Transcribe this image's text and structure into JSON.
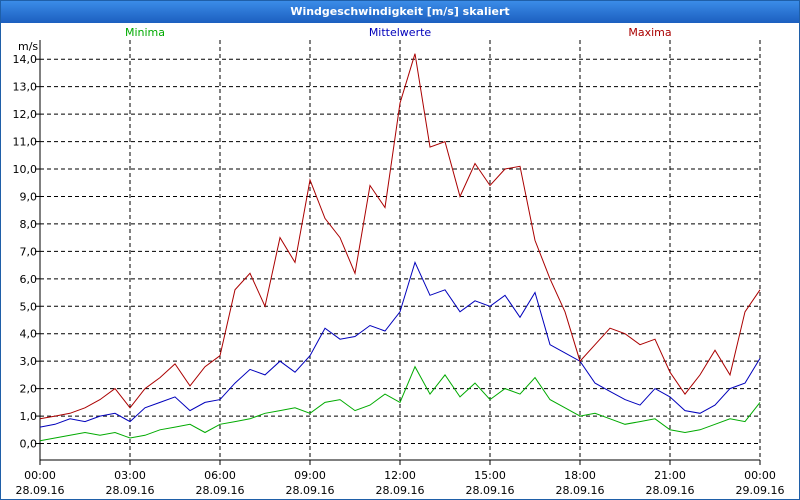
{
  "window": {
    "title": "Windgeschwindigkeit [m/s] skaliert"
  },
  "chart_data": {
    "type": "line",
    "title": "Windgeschwindigkeit [m/s] skaliert",
    "ylabel": "m/s",
    "xlabel": "",
    "ylim": [
      -0.6,
      14.7
    ],
    "yticks": [
      0,
      1,
      2,
      3,
      4,
      5,
      6,
      7,
      8,
      9,
      10,
      11,
      12,
      13,
      14
    ],
    "ytick_labels": [
      "0,0",
      "1,0",
      "2,0",
      "3,0",
      "4,0",
      "5,0",
      "6,0",
      "7,0",
      "8,0",
      "9,0",
      "10,0",
      "11,0",
      "12,0",
      "13,0",
      "14,0"
    ],
    "xlim_hours": [
      0,
      24
    ],
    "xticks": [
      {
        "hours": 0,
        "time": "00:00",
        "date": "28.09.16"
      },
      {
        "hours": 3,
        "time": "03:00",
        "date": "28.09.16"
      },
      {
        "hours": 6,
        "time": "06:00",
        "date": "28.09.16"
      },
      {
        "hours": 9,
        "time": "09:00",
        "date": "28.09.16"
      },
      {
        "hours": 12,
        "time": "12:00",
        "date": "28.09.16"
      },
      {
        "hours": 15,
        "time": "15:00",
        "date": "28.09.16"
      },
      {
        "hours": 18,
        "time": "18:00",
        "date": "28.09.16"
      },
      {
        "hours": 21,
        "time": "21:00",
        "date": "28.09.16"
      },
      {
        "hours": 24,
        "time": "00:00",
        "date": "29.09.16"
      }
    ],
    "grid": true,
    "legend_position": "top",
    "series": [
      {
        "name": "Minima",
        "color": "#00aa00",
        "x": [
          0,
          0.5,
          1,
          1.5,
          2,
          2.5,
          3,
          3.5,
          4,
          4.5,
          5,
          5.5,
          6,
          6.5,
          7,
          7.5,
          8,
          8.5,
          9,
          9.5,
          10,
          10.5,
          11,
          11.5,
          12,
          12.5,
          13,
          13.5,
          14,
          14.5,
          15,
          15.5,
          16,
          16.5,
          17,
          17.5,
          18,
          18.5,
          19,
          19.5,
          20,
          20.5,
          21,
          21.5,
          22,
          22.5,
          23,
          23.5,
          24
        ],
        "values": [
          0.1,
          0.2,
          0.3,
          0.4,
          0.3,
          0.4,
          0.2,
          0.3,
          0.5,
          0.6,
          0.7,
          0.4,
          0.7,
          0.8,
          0.9,
          1.1,
          1.2,
          1.3,
          1.1,
          1.5,
          1.6,
          1.2,
          1.4,
          1.8,
          1.5,
          2.8,
          1.8,
          2.5,
          1.7,
          2.2,
          1.6,
          2.0,
          1.8,
          2.4,
          1.6,
          1.3,
          1.0,
          1.1,
          0.9,
          0.7,
          0.8,
          0.9,
          0.5,
          0.4,
          0.5,
          0.7,
          0.9,
          0.8,
          1.5
        ]
      },
      {
        "name": "Mittelwerte",
        "color": "#0000bb",
        "x": [
          0,
          0.5,
          1,
          1.5,
          2,
          2.5,
          3,
          3.5,
          4,
          4.5,
          5,
          5.5,
          6,
          6.5,
          7,
          7.5,
          8,
          8.5,
          9,
          9.5,
          10,
          10.5,
          11,
          11.5,
          12,
          12.5,
          13,
          13.5,
          14,
          14.5,
          15,
          15.5,
          16,
          16.5,
          17,
          17.5,
          18,
          18.5,
          19,
          19.5,
          20,
          20.5,
          21,
          21.5,
          22,
          22.5,
          23,
          23.5,
          24
        ],
        "values": [
          0.6,
          0.7,
          0.9,
          0.8,
          1.0,
          1.1,
          0.8,
          1.3,
          1.5,
          1.7,
          1.2,
          1.5,
          1.6,
          2.2,
          2.7,
          2.5,
          3.0,
          2.6,
          3.2,
          4.2,
          3.8,
          3.9,
          4.3,
          4.1,
          4.8,
          6.6,
          5.4,
          5.6,
          4.8,
          5.2,
          5.0,
          5.4,
          4.6,
          5.5,
          3.6,
          3.3,
          3.0,
          2.2,
          1.9,
          1.6,
          1.4,
          2.0,
          1.7,
          1.2,
          1.1,
          1.4,
          2.0,
          2.2,
          3.1
        ]
      },
      {
        "name": "Maxima",
        "color": "#aa0000",
        "x": [
          0,
          0.5,
          1,
          1.5,
          2,
          2.5,
          3,
          3.5,
          4,
          4.5,
          5,
          5.5,
          6,
          6.5,
          7,
          7.5,
          8,
          8.5,
          9,
          9.5,
          10,
          10.5,
          11,
          11.5,
          12,
          12.5,
          13,
          13.5,
          14,
          14.5,
          15,
          15.5,
          16,
          16.5,
          17,
          17.5,
          18,
          18.5,
          19,
          19.5,
          20,
          20.5,
          21,
          21.5,
          22,
          22.5,
          23,
          23.5,
          24
        ],
        "values": [
          0.9,
          1.0,
          1.1,
          1.3,
          1.6,
          2.0,
          1.3,
          2.0,
          2.4,
          2.9,
          2.1,
          2.8,
          3.2,
          5.6,
          6.2,
          5.0,
          7.5,
          6.6,
          9.6,
          8.2,
          7.5,
          6.2,
          9.4,
          8.6,
          12.4,
          14.2,
          10.8,
          11.0,
          9.0,
          10.2,
          9.4,
          10.0,
          10.1,
          7.4,
          6.0,
          4.8,
          3.0,
          3.6,
          4.2,
          4.0,
          3.6,
          3.8,
          2.6,
          1.8,
          2.5,
          3.4,
          2.5,
          4.8,
          5.6
        ]
      }
    ]
  }
}
